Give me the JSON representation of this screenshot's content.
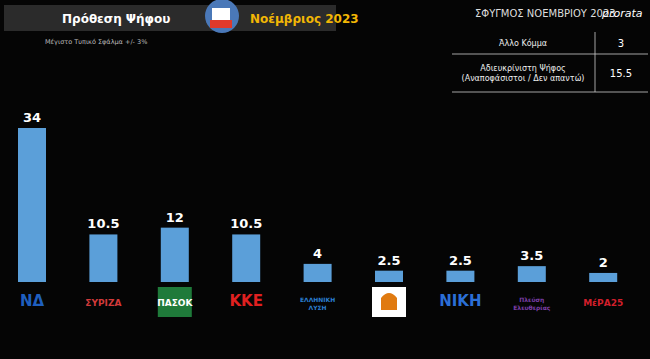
{
  "chart_data": {
    "type": "bar",
    "title": "Πρόθεση Ψήφου",
    "subtitle": "Νοέμβριος 2023",
    "annotations": [
      "Μέγιστο Τυπικό Σφάλμα +/- 3%",
      "ΣΦΥΓΜΟΣ ΝΟΕΜΒΡΙΟΥ 2023",
      "prorata"
    ],
    "categories": [
      "ΝΔ",
      "ΣΥΡΙΖΑ",
      "ΠΑΣΟΚ",
      "ΚΚΕ",
      "ΕΛΛΗΝΙΚΗ ΛΥΣΗ",
      null,
      "ΝΙΚΗ",
      "Πλεύση Ελευθερίας",
      "ΜέΡΑ25"
    ],
    "values": [
      34,
      10.5,
      12,
      10.5,
      4,
      2.5,
      2.5,
      3.5,
      2
    ],
    "color": "#5b9fd9",
    "ylim": [
      0,
      34
    ],
    "data_labels": true,
    "tick_labels": "x",
    "grid": false
  },
  "table": {
    "rows": [
      {
        "label": [
          "Άλλο Κόμμα"
        ],
        "value": 3
      },
      {
        "label": [
          "Αδιευκρίνιστη Ψήφος",
          "(Αναποφάσιστοι / Δεν απαντώ)"
        ],
        "value": 15.5
      }
    ]
  }
}
